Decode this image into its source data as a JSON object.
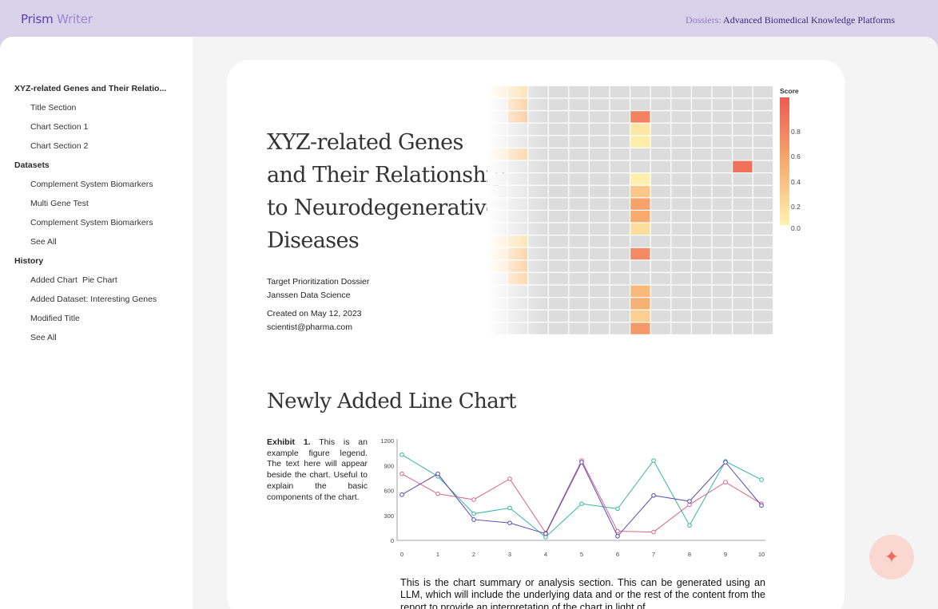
{
  "app": {
    "name_primary": "Prism",
    "name_secondary": "Writer"
  },
  "breadcrumb": {
    "section": "Dossiers:",
    "page": "Advanced Biomedical Knowledge Platforms"
  },
  "sidebar": {
    "groups": [
      {
        "title": "XYZ-related Genes and Their Relatio...",
        "items": [
          "Title Section",
          "Chart Section 1",
          "Chart Section 2"
        ]
      },
      {
        "title": "Datasets",
        "items": [
          "Complement System Biomarkers",
          "Multi Gene Test",
          "Complement System Biomarkers",
          "See All"
        ]
      },
      {
        "title": "History",
        "items": [
          "Added Chart",
          "Added Dataset: Interesting Genes",
          "Modified Title",
          "See All"
        ],
        "item0_sub": "Pie Chart"
      }
    ]
  },
  "document": {
    "title": "XYZ-related Genes and Their Relationship to Neurodegenerative Diseases",
    "dossier_type": "Target Prioritization Dossier",
    "team": "Janssen Data Science",
    "created": "Created on May 12, 2023",
    "author_email": "scientist@pharma.com"
  },
  "section2": {
    "title": "Newly Added Line Chart",
    "exhibit_label": "Exhibit 1.",
    "exhibit_text": "This is an example figure legend. The text here will appear beside the chart. Useful to explain the basic components of the chart.",
    "summary": "This is the chart summary or analysis section. This can be generated using an LLM, which will include the underlying data  and or the rest of the content from the report   to provide an interpretation of the chart in light of"
  },
  "fab": {
    "icon": "sparkle-icon",
    "glyph": "✦"
  },
  "colors": {
    "accent": "#5b3fb0",
    "teal": "#35b5a0",
    "pink": "#d4668c",
    "purple": "#5a48b0",
    "heat_high": "#ee5a52",
    "heat_low": "#fff3b0"
  },
  "chart_data": [
    {
      "type": "heatmap",
      "title": "",
      "legend_title": "Score",
      "colorbar_ticks": [
        "0.8",
        "0.6",
        "0.4",
        "0.2",
        "0.0"
      ],
      "rows": 20,
      "cols": 14,
      "cells": [
        {
          "r": 0,
          "c": 0,
          "v": 0.15
        },
        {
          "r": 0,
          "c": 1,
          "v": 0.2
        },
        {
          "r": 1,
          "c": 1,
          "v": 0.35
        },
        {
          "r": 2,
          "c": 1,
          "v": 0.4
        },
        {
          "r": 2,
          "c": 7,
          "v": 0.75
        },
        {
          "r": 3,
          "c": 7,
          "v": 0.08
        },
        {
          "r": 4,
          "c": 7,
          "v": 0.05
        },
        {
          "r": 5,
          "c": 0,
          "v": 0.2
        },
        {
          "r": 5,
          "c": 1,
          "v": 0.3
        },
        {
          "r": 6,
          "c": 12,
          "v": 0.85
        },
        {
          "r": 7,
          "c": 7,
          "v": 0.02
        },
        {
          "r": 8,
          "c": 7,
          "v": 0.3
        },
        {
          "r": 9,
          "c": 7,
          "v": 0.55
        },
        {
          "r": 10,
          "c": 7,
          "v": 0.5
        },
        {
          "r": 11,
          "c": 7,
          "v": 0.15
        },
        {
          "r": 12,
          "c": 0,
          "v": 0.15
        },
        {
          "r": 12,
          "c": 1,
          "v": 0.2
        },
        {
          "r": 13,
          "c": 0,
          "v": 0.2
        },
        {
          "r": 13,
          "c": 1,
          "v": 0.35
        },
        {
          "r": 13,
          "c": 7,
          "v": 0.7
        },
        {
          "r": 14,
          "c": 0,
          "v": 0.2
        },
        {
          "r": 14,
          "c": 1,
          "v": 0.35
        },
        {
          "r": 15,
          "c": 1,
          "v": 0.3
        },
        {
          "r": 16,
          "c": 7,
          "v": 0.4
        },
        {
          "r": 17,
          "c": 7,
          "v": 0.45
        },
        {
          "r": 18,
          "c": 7,
          "v": 0.25
        },
        {
          "r": 19,
          "c": 7,
          "v": 0.6
        }
      ],
      "fade_left": true
    },
    {
      "type": "line",
      "title": "",
      "xlabel": "",
      "ylabel": "",
      "x": [
        0,
        1,
        2,
        3,
        4,
        5,
        6,
        7,
        8,
        9,
        10
      ],
      "xlim": [
        0,
        10
      ],
      "ylim": [
        0,
        1200
      ],
      "yticks": [
        0,
        300,
        600,
        900,
        1200
      ],
      "series": [
        {
          "color": "#35b5a0",
          "values": [
            1030,
            770,
            320,
            390,
            40,
            440,
            380,
            960,
            180,
            950,
            730
          ]
        },
        {
          "color": "#d4668c",
          "values": [
            800,
            560,
            490,
            740,
            90,
            960,
            110,
            100,
            430,
            700,
            440
          ]
        },
        {
          "color": "#5a48b0",
          "values": [
            550,
            800,
            250,
            210,
            80,
            940,
            50,
            540,
            470,
            940,
            420
          ]
        }
      ],
      "grid": false,
      "legend": "none"
    }
  ]
}
